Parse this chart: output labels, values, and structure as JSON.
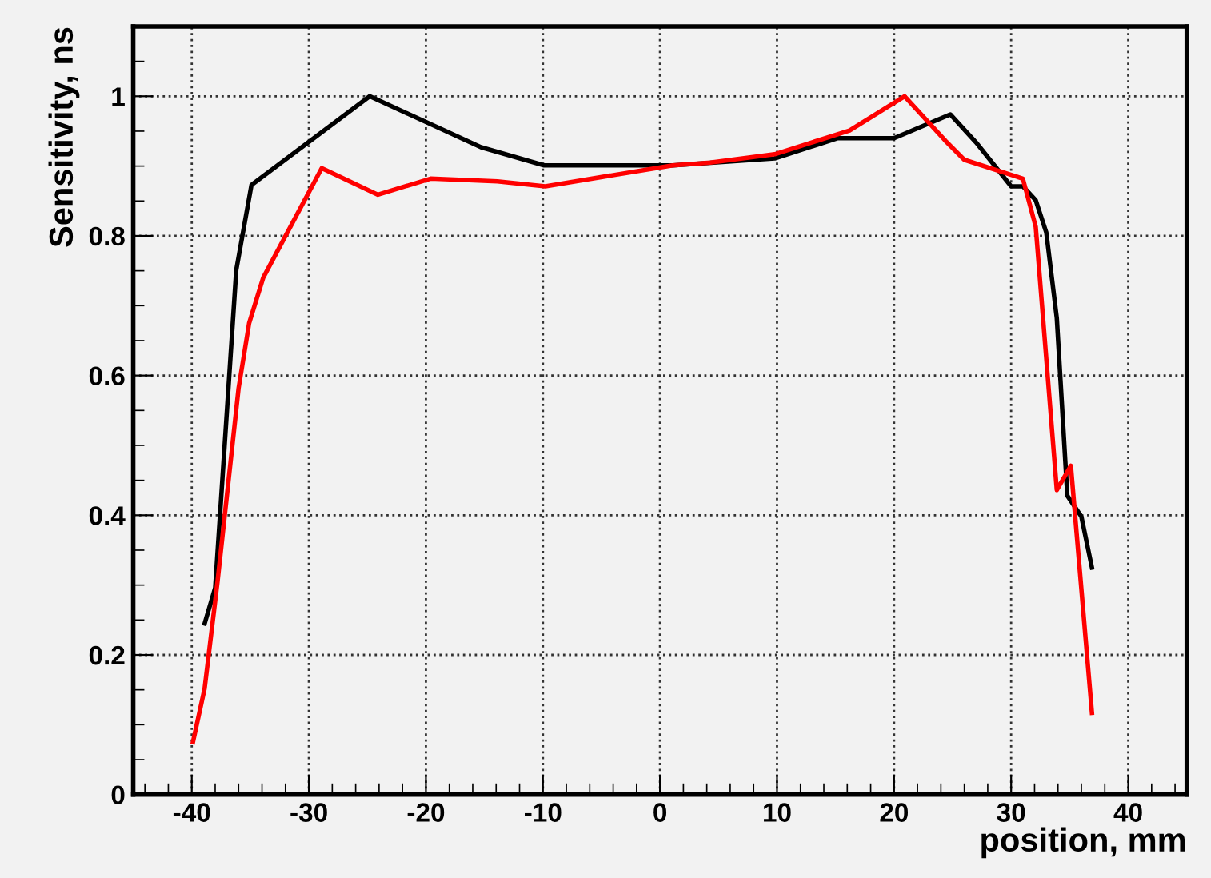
{
  "chart_data": {
    "type": "line",
    "xlabel": "position, mm",
    "ylabel": "Sensitivity, ns",
    "xlim": [
      -45,
      45
    ],
    "ylim": [
      0,
      1.1
    ],
    "xticks": [
      -40,
      -30,
      -20,
      -10,
      0,
      10,
      20,
      30,
      40
    ],
    "yticks": [
      0,
      0.2,
      0.4,
      0.6,
      0.8,
      1
    ],
    "grid": true,
    "legend": false,
    "marker": "none",
    "line_style": "solid",
    "series": [
      {
        "color": "#000000",
        "x": [
          -38.9,
          -38.0,
          -36.2,
          -34.9,
          -24.8,
          -15.3,
          -9.9,
          1.1,
          9.8,
          15.2,
          20.0,
          24.8,
          27.1,
          30.0,
          31.0,
          32.1,
          33.0,
          33.9,
          34.8,
          36.0,
          36.9
        ],
        "values": [
          0.245,
          0.296,
          0.751,
          0.873,
          1.0,
          0.927,
          0.901,
          0.901,
          0.911,
          0.94,
          0.94,
          0.974,
          0.932,
          0.871,
          0.871,
          0.851,
          0.805,
          0.682,
          0.428,
          0.398,
          0.325
        ]
      },
      {
        "color": "#ff0000",
        "x": [
          -39.9,
          -38.9,
          -37.8,
          -36.0,
          -35.1,
          -33.9,
          -28.9,
          -24.1,
          -19.6,
          -13.9,
          -9.8,
          1.1,
          4.3,
          9.8,
          16.2,
          20.9,
          24.4,
          26.0,
          31.0,
          32.1,
          33.9,
          35.1,
          36.9
        ],
        "values": [
          0.075,
          0.152,
          0.305,
          0.582,
          0.675,
          0.74,
          0.897,
          0.859,
          0.882,
          0.878,
          0.871,
          0.901,
          0.905,
          0.917,
          0.951,
          1.0,
          0.936,
          0.909,
          0.882,
          0.813,
          0.436,
          0.471,
          0.117
        ]
      }
    ]
  }
}
